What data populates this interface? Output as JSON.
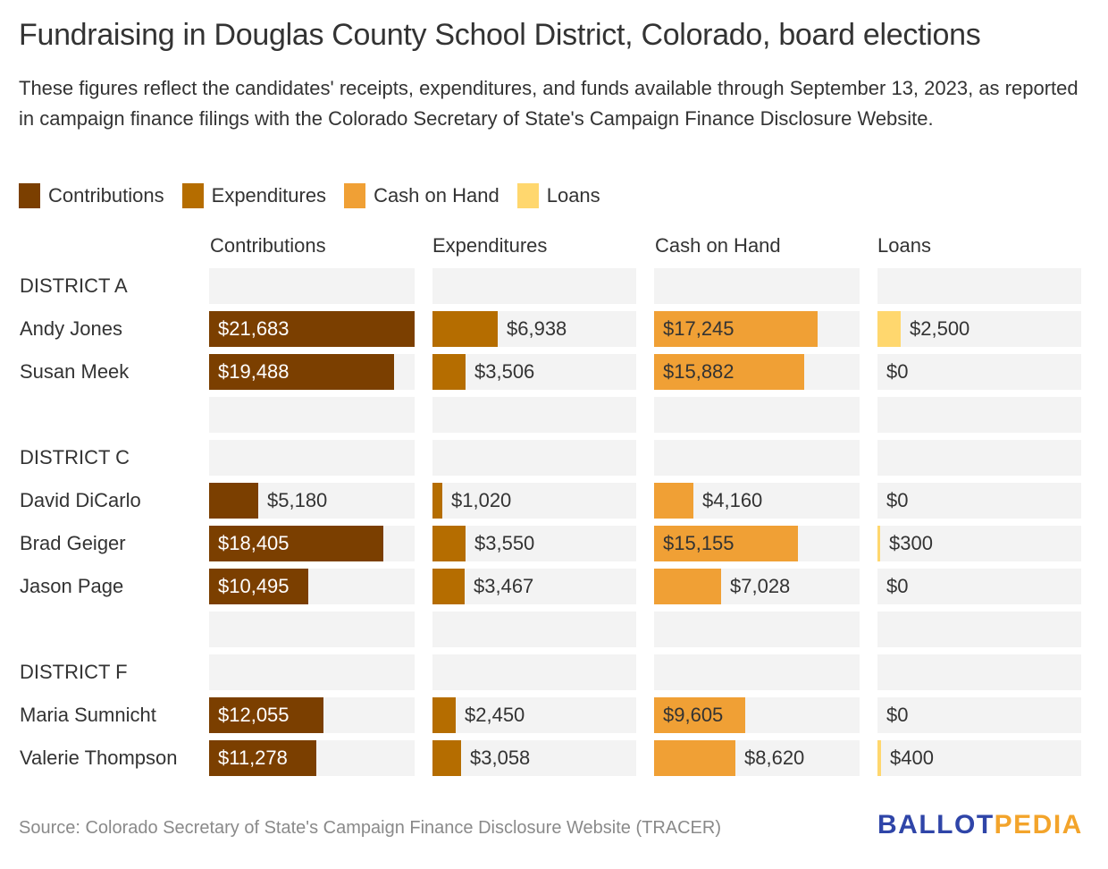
{
  "title": "Fundraising in Douglas County School District, Colorado, board elections",
  "subtitle": "These figures reflect the candidates' receipts, expenditures, and funds available through September 13, 2023, as reported in campaign finance filings with the Colorado Secretary of State's Campaign Finance Disclosure Website.",
  "legend": [
    {
      "label": "Contributions",
      "color": "#7b3f00"
    },
    {
      "label": "Expenditures",
      "color": "#b56d00"
    },
    {
      "label": "Cash on Hand",
      "color": "#f0a035"
    },
    {
      "label": "Loans",
      "color": "#ffd76e"
    }
  ],
  "source": "Source: Colorado Secretary of State's Campaign Finance Disclosure Website (TRACER)",
  "logo": {
    "part1": "BALLOT",
    "part2": "PEDIA"
  },
  "chart_data": {
    "type": "bar",
    "title": "Fundraising in Douglas County School District, Colorado, board elections",
    "columns": [
      "Contributions",
      "Expenditures",
      "Cash on Hand",
      "Loans"
    ],
    "colors": [
      "#7b3f00",
      "#b56d00",
      "#f0a035",
      "#ffd76e"
    ],
    "label_colors_inside": [
      "#ffffff",
      "#ffffff",
      "#333333",
      "#333333"
    ],
    "scale_max": 21683,
    "rows": [
      {
        "type": "group",
        "label": "DISTRICT A"
      },
      {
        "type": "candidate",
        "label": "Andy Jones",
        "values": [
          21683,
          6938,
          17245,
          2500
        ],
        "labels": [
          "$21,683",
          "$6,938",
          "$17,245",
          "$2,500"
        ]
      },
      {
        "type": "candidate",
        "label": "Susan Meek",
        "values": [
          19488,
          3506,
          15882,
          0
        ],
        "labels": [
          "$19,488",
          "$3,506",
          "$15,882",
          "$0"
        ]
      },
      {
        "type": "spacer",
        "label": ""
      },
      {
        "type": "group",
        "label": "DISTRICT C"
      },
      {
        "type": "candidate",
        "label": "David DiCarlo",
        "values": [
          5180,
          1020,
          4160,
          0
        ],
        "labels": [
          "$5,180",
          "$1,020",
          "$4,160",
          "$0"
        ]
      },
      {
        "type": "candidate",
        "label": "Brad Geiger",
        "values": [
          18405,
          3550,
          15155,
          300
        ],
        "labels": [
          "$18,405",
          "$3,550",
          "$15,155",
          "$300"
        ]
      },
      {
        "type": "candidate",
        "label": "Jason Page",
        "values": [
          10495,
          3467,
          7028,
          0
        ],
        "labels": [
          "$10,495",
          "$3,467",
          "$7,028",
          "$0"
        ]
      },
      {
        "type": "spacer",
        "label": ""
      },
      {
        "type": "group",
        "label": "DISTRICT F"
      },
      {
        "type": "candidate",
        "label": "Maria Sumnicht",
        "values": [
          12055,
          2450,
          9605,
          0
        ],
        "labels": [
          "$12,055",
          "$2,450",
          "$9,605",
          "$0"
        ]
      },
      {
        "type": "candidate",
        "label": "Valerie Thompson",
        "values": [
          11278,
          3058,
          8620,
          400
        ],
        "labels": [
          "$11,278",
          "$3,058",
          "$8,620",
          "$400"
        ]
      }
    ]
  }
}
